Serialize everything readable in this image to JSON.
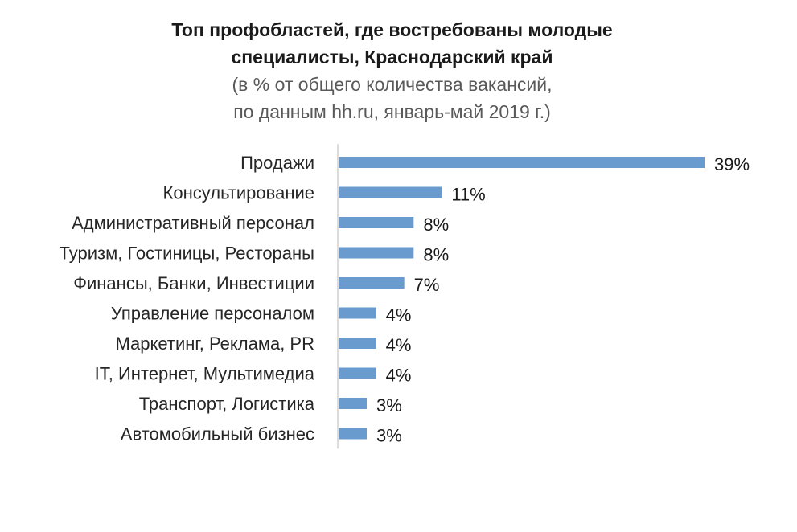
{
  "chart_data": {
    "type": "bar",
    "orientation": "horizontal",
    "title": [
      "Топ профобластей, где востребованы молодые",
      "специалисты, Краснодарский край"
    ],
    "subtitle": [
      "(в % от общего количества вакансий,",
      "по данным hh.ru, январь-май 2019 г.)"
    ],
    "categories": [
      "Продажи",
      "Консультирование",
      "Административный персонал",
      "Туризм, Гостиницы, Рестораны",
      "Финансы, Банки, Инвестиции",
      "Управление персоналом",
      "Маркетинг, Реклама, PR",
      "IT, Интернет, Мультимедиа",
      "Транспорт, Логистика",
      "Автомобильный бизнес"
    ],
    "values": [
      39,
      11,
      8,
      8,
      7,
      4,
      4,
      4,
      3,
      3
    ],
    "value_labels": [
      "39%",
      "11%",
      "8%",
      "8%",
      "7%",
      "4%",
      "4%",
      "4%",
      "3%",
      "3%"
    ],
    "unit": "%",
    "xlim": [
      0,
      39
    ],
    "grid": false,
    "legend": "none",
    "bar_color": "#6a9bcf"
  }
}
